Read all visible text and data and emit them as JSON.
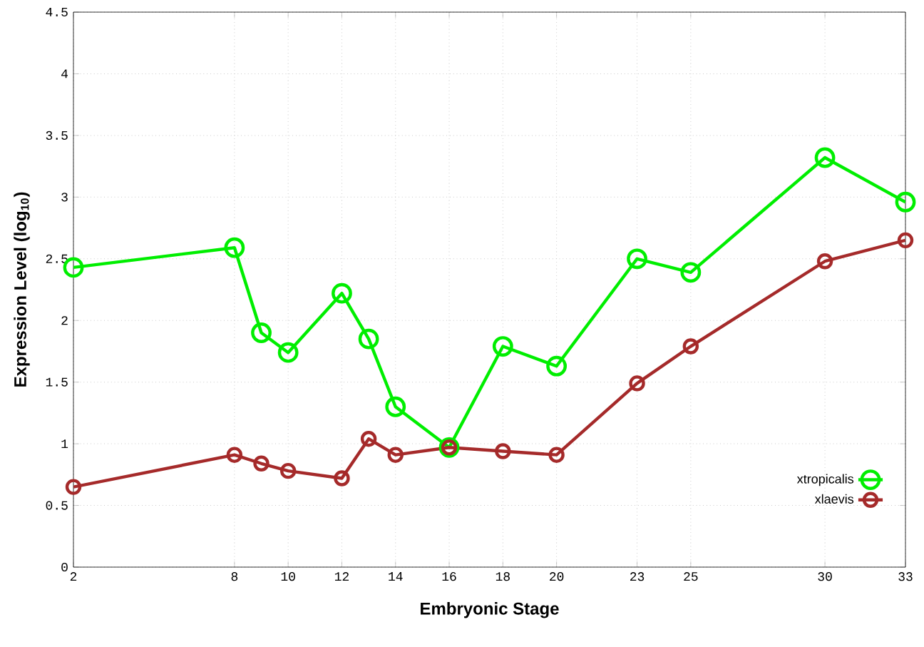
{
  "chart_data": {
    "type": "line",
    "xlabel": "Embryonic Stage",
    "ylabel": "Expression Level (log$_{10}$)",
    "x": [
      2,
      8,
      9,
      10,
      12,
      13,
      14,
      16,
      18,
      20,
      23,
      25,
      30,
      33
    ],
    "series": [
      {
        "name": "xtropicalis",
        "color": "#00ee00",
        "values": [
          2.43,
          2.59,
          1.9,
          1.74,
          2.22,
          1.85,
          1.3,
          0.97,
          1.79,
          1.63,
          2.5,
          2.39,
          3.32,
          2.96
        ]
      },
      {
        "name": "xlaevis",
        "color": "#a52a2a",
        "values": [
          0.65,
          0.91,
          0.84,
          0.78,
          0.72,
          1.04,
          0.91,
          0.97,
          0.94,
          0.91,
          1.49,
          1.79,
          2.48,
          2.65
        ]
      }
    ],
    "xlim": [
      2,
      33
    ],
    "ylim": [
      0,
      4.5
    ],
    "xticks": [
      2,
      8,
      10,
      12,
      14,
      16,
      18,
      20,
      23,
      25,
      30,
      33
    ],
    "yticks": [
      0,
      0.5,
      1,
      1.5,
      2,
      2.5,
      3,
      3.5,
      4,
      4.5
    ],
    "grid": true,
    "legend": "bottom right",
    "marker": "circle",
    "line_style": "solid"
  }
}
